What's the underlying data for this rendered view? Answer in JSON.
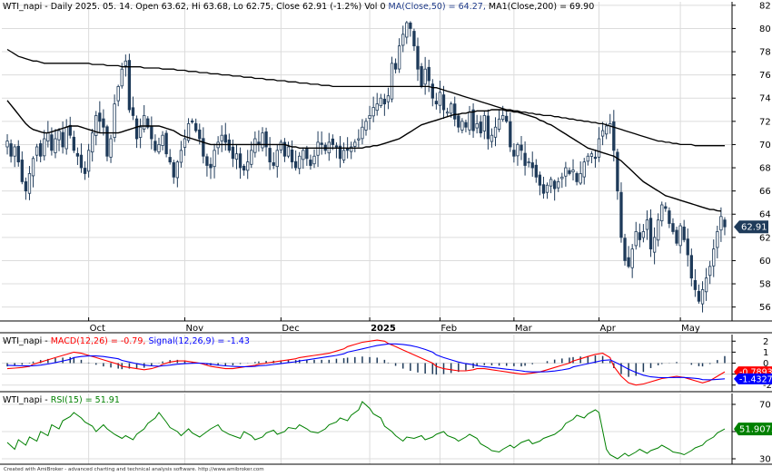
{
  "header": {
    "price": {
      "prefix": "WTI_napi - Daily 2025. 05. 14. Open 63.62, Hi 63.68, Lo 62.75, Close 62.91 (-1.2%) Vol 0 ",
      "ma50": "MA(Close,50) = 64.27, ",
      "ma200": "MA1(Close,200) = 69.90"
    },
    "macd": {
      "prefix": "WTI_napi - ",
      "macd": "MACD(12,26) = -0.79, ",
      "signal": "Signal(12,26,9) = -1.43"
    },
    "rsi": {
      "prefix": "WTI_napi - ",
      "rsi": "RSI(15) = 51.91"
    }
  },
  "footer": "Created with AmiBroker - advanced charting and technical analysis software. http://www.amibroker.com",
  "colors": {
    "bull_candle": "#ffffff",
    "bear_candle": "#1f3b5a",
    "candle_outline": "#1f3b5a",
    "ma_line": "#000000",
    "macd_line": "#ff0000",
    "signal_line": "#0000ff",
    "histogram": "#1f3b5a",
    "rsi_line": "#008000",
    "price_tag": "#1f3b5a",
    "macd_tag": "#ff0000",
    "signal_tag": "#0000ff",
    "rsi_tag": "#008000",
    "grid": "#dcdcdc"
  },
  "chart_data": [
    {
      "type": "candlestick",
      "panel": "price",
      "x_labels": [
        "Oct",
        "Nov",
        "Dec",
        "2025",
        "Feb",
        "Mar",
        "Apr",
        "May"
      ],
      "y_ticks": [
        56,
        58,
        60,
        62,
        64,
        66,
        68,
        70,
        72,
        74,
        76,
        78,
        80,
        82
      ],
      "ylim": [
        54.8,
        82.3
      ],
      "last_value_label": "62.91",
      "close": [
        70.3,
        69.0,
        69.8,
        68.5,
        66.8,
        66.0,
        67.5,
        68.8,
        69.8,
        69.0,
        70.5,
        71.0,
        69.5,
        70.5,
        71.2,
        69.8,
        71.5,
        70.8,
        69.5,
        69.0,
        68.0,
        67.5,
        69.5,
        71.0,
        72.5,
        72.0,
        71.5,
        69.0,
        70.5,
        73.5,
        75.0,
        76.5,
        77.2,
        73.0,
        72.5,
        70.5,
        71.5,
        72.5,
        71.5,
        70.5,
        69.5,
        70.0,
        70.8,
        69.2,
        68.5,
        67.2,
        68.5,
        69.5,
        70.5,
        71.8,
        72.0,
        71.2,
        70.5,
        69.0,
        68.2,
        68.0,
        69.5,
        70.2,
        70.8,
        70.2,
        69.5,
        68.8,
        69.2,
        68.0,
        67.8,
        68.5,
        69.5,
        70.5,
        70.0,
        71.0,
        69.8,
        68.5,
        68.2,
        69.5,
        70.2,
        69.0,
        69.8,
        68.5,
        68.0,
        69.0,
        69.5,
        68.8,
        68.2,
        69.0,
        70.2,
        70.0,
        69.5,
        70.2,
        70.0,
        69.8,
        68.8,
        69.5,
        69.5,
        69.8,
        70.2,
        70.5,
        71.5,
        72.0,
        72.5,
        73.2,
        73.5,
        74.0,
        73.5,
        74.2,
        77.0,
        76.5,
        78.5,
        79.5,
        80.5,
        80.0,
        78.5,
        76.5,
        75.0,
        76.5,
        75.5,
        74.0,
        73.5,
        74.5,
        73.0,
        72.8,
        73.5,
        72.2,
        71.5,
        72.0,
        71.5,
        72.8,
        71.2,
        71.8,
        71.0,
        72.5,
        70.5,
        70.8,
        71.5,
        72.2,
        72.5,
        72.0,
        69.8,
        69.0,
        70.0,
        69.5,
        68.2,
        68.5,
        68.0,
        67.2,
        66.5,
        65.8,
        66.5,
        67.0,
        66.2,
        66.8,
        67.2,
        68.0,
        67.5,
        67.8,
        66.8,
        67.5,
        68.5,
        69.0,
        69.2,
        68.8,
        70.5,
        71.2,
        71.6,
        71.8,
        69.5,
        66.0,
        62.0,
        60.0,
        59.5,
        61.0,
        62.5,
        61.8,
        62.5,
        63.5,
        61.0,
        62.0,
        63.5,
        64.8,
        64.5,
        63.2,
        62.5,
        61.5,
        63.0,
        61.8,
        60.5,
        58.5,
        57.5,
        56.5,
        57.5,
        58.5,
        59.5,
        61.0,
        62.5,
        63.8,
        62.91
      ]
    },
    {
      "type": "line",
      "panel": "price",
      "series": [
        {
          "name": "MA(Close,50)",
          "values": [
            73.8,
            73.4,
            73.0,
            72.6,
            72.2,
            71.8,
            71.5,
            71.3,
            71.2,
            71.1,
            71.0,
            71.0,
            71.1,
            71.2,
            71.3,
            71.4,
            71.5,
            71.6,
            71.6,
            71.6,
            71.5,
            71.4,
            71.3,
            71.2,
            71.1,
            71.0,
            71.0,
            71.0,
            71.0,
            71.0,
            71.0,
            71.1,
            71.2,
            71.3,
            71.4,
            71.5,
            71.6,
            71.6,
            71.6,
            71.6,
            71.6,
            71.6,
            71.5,
            71.4,
            71.3,
            71.2,
            71.0,
            70.8,
            70.7,
            70.6,
            70.5,
            70.4,
            70.3,
            70.2,
            70.1,
            70.0,
            70.0,
            70.0,
            70.0,
            70.0,
            70.0,
            70.0,
            70.0,
            70.0,
            70.0,
            70.0,
            70.0,
            70.0,
            70.0,
            70.0,
            70.0,
            70.0,
            70.0,
            70.0,
            70.0,
            70.0,
            69.9,
            69.8,
            69.8,
            69.7,
            69.7,
            69.7,
            69.7,
            69.7,
            69.7,
            69.7,
            69.7,
            69.7,
            69.7,
            69.7,
            69.7,
            69.7,
            69.7,
            69.7,
            69.7,
            69.7,
            69.7,
            69.8,
            69.8,
            69.9,
            69.9,
            70.0,
            70.1,
            70.2,
            70.3,
            70.4,
            70.5,
            70.7,
            70.9,
            71.1,
            71.3,
            71.5,
            71.7,
            71.8,
            71.9,
            72.0,
            72.1,
            72.2,
            72.3,
            72.4,
            72.5,
            72.6,
            72.6,
            72.7,
            72.7,
            72.8,
            72.8,
            72.9,
            72.9,
            72.9,
            72.9,
            73.0,
            73.0,
            73.0,
            73.0,
            72.9,
            72.9,
            72.8,
            72.8,
            72.7,
            72.6,
            72.5,
            72.4,
            72.3,
            72.1,
            72.0,
            71.8,
            71.7,
            71.5,
            71.3,
            71.1,
            70.9,
            70.7,
            70.5,
            70.3,
            70.1,
            69.9,
            69.7,
            69.6,
            69.5,
            69.4,
            69.3,
            69.2,
            69.1,
            69.0,
            68.8,
            68.6,
            68.3,
            68.0,
            67.7,
            67.4,
            67.1,
            66.8,
            66.6,
            66.4,
            66.2,
            66.0,
            65.8,
            65.6,
            65.5,
            65.4,
            65.3,
            65.2,
            65.1,
            65.0,
            64.9,
            64.8,
            64.7,
            64.6,
            64.5,
            64.4,
            64.4,
            64.3,
            64.27
          ]
        },
        {
          "name": "MA1(Close,200)",
          "values": [
            78.2,
            78.0,
            77.8,
            77.6,
            77.5,
            77.4,
            77.3,
            77.2,
            77.2,
            77.1,
            77.0,
            77.0,
            77.0,
            77.0,
            77.0,
            77.0,
            77.0,
            77.0,
            77.0,
            77.0,
            77.0,
            77.0,
            77.0,
            76.9,
            76.9,
            76.9,
            76.9,
            76.8,
            76.8,
            76.8,
            76.8,
            76.7,
            76.7,
            76.7,
            76.7,
            76.7,
            76.7,
            76.6,
            76.6,
            76.6,
            76.6,
            76.6,
            76.5,
            76.5,
            76.5,
            76.5,
            76.4,
            76.4,
            76.4,
            76.3,
            76.3,
            76.3,
            76.2,
            76.2,
            76.2,
            76.1,
            76.1,
            76.1,
            76.0,
            76.0,
            76.0,
            75.9,
            75.9,
            75.9,
            75.8,
            75.8,
            75.8,
            75.7,
            75.7,
            75.7,
            75.6,
            75.6,
            75.6,
            75.5,
            75.5,
            75.5,
            75.4,
            75.4,
            75.4,
            75.3,
            75.3,
            75.3,
            75.2,
            75.2,
            75.2,
            75.1,
            75.1,
            75.1,
            75.0,
            75.0,
            75.0,
            75.0,
            75.0,
            75.0,
            75.0,
            75.0,
            75.0,
            75.0,
            75.0,
            75.0,
            75.0,
            75.0,
            75.0,
            75.0,
            75.0,
            75.0,
            75.0,
            75.0,
            75.0,
            75.0,
            75.0,
            75.0,
            75.0,
            75.0,
            75.0,
            74.9,
            74.9,
            74.8,
            74.7,
            74.6,
            74.5,
            74.4,
            74.3,
            74.2,
            74.1,
            74.0,
            73.9,
            73.8,
            73.7,
            73.6,
            73.5,
            73.4,
            73.3,
            73.2,
            73.1,
            73.0,
            73.0,
            72.9,
            72.9,
            72.8,
            72.8,
            72.7,
            72.7,
            72.6,
            72.6,
            72.5,
            72.5,
            72.5,
            72.4,
            72.4,
            72.3,
            72.3,
            72.2,
            72.2,
            72.1,
            72.1,
            72.0,
            72.0,
            71.9,
            71.9,
            71.8,
            71.8,
            71.7,
            71.6,
            71.5,
            71.4,
            71.3,
            71.2,
            71.1,
            71.0,
            70.9,
            70.8,
            70.7,
            70.6,
            70.5,
            70.4,
            70.3,
            70.3,
            70.2,
            70.2,
            70.1,
            70.1,
            70.0,
            70.0,
            70.0,
            70.0,
            69.9,
            69.9,
            69.9,
            69.9,
            69.9,
            69.9,
            69.9,
            69.9,
            69.9
          ]
        }
      ]
    },
    {
      "type": "line",
      "panel": "macd",
      "y_ticks": [
        -2,
        -1,
        0,
        1,
        2
      ],
      "ylim": [
        -2.6,
        2.6
      ],
      "last_value_labels": [
        "-0.789317",
        "-1.4327"
      ],
      "series": [
        {
          "name": "MACD(12,26)",
          "values": [
            -0.5,
            -0.45,
            -0.4,
            -0.3,
            -0.1,
            0.1,
            0.3,
            0.5,
            0.7,
            0.9,
            1.0,
            0.9,
            0.7,
            0.5,
            0.3,
            0.1,
            -0.1,
            -0.3,
            -0.4,
            -0.5,
            -0.6,
            -0.5,
            -0.3,
            -0.1,
            0.1,
            0.2,
            0.2,
            0.1,
            0.0,
            -0.2,
            -0.3,
            -0.4,
            -0.5,
            -0.5,
            -0.4,
            -0.3,
            -0.2,
            -0.1,
            0.0,
            0.1,
            0.2,
            0.3,
            0.4,
            0.5,
            0.6,
            0.7,
            0.8,
            0.9,
            1.1,
            1.3,
            1.5,
            1.7,
            1.9,
            2.0,
            2.1,
            2.0,
            1.8,
            1.5,
            1.2,
            0.9,
            0.6,
            0.3,
            0.0,
            -0.3,
            -0.5,
            -0.6,
            -0.7,
            -0.7,
            -0.6,
            -0.5,
            -0.5,
            -0.6,
            -0.7,
            -0.8,
            -0.9,
            -1.0,
            -1.0,
            -0.9,
            -0.8,
            -0.6,
            -0.4,
            -0.2,
            0.0,
            0.2,
            0.4,
            0.6,
            0.8,
            0.9,
            0.5,
            -0.3,
            -1.2,
            -1.8,
            -2.0,
            -1.9,
            -1.7,
            -1.5,
            -1.4,
            -1.3,
            -1.2,
            -1.3,
            -1.5,
            -1.7,
            -1.8,
            -1.6,
            -1.2,
            -0.79
          ]
        },
        {
          "name": "Signal(12,26,9)",
          "values": [
            -0.2,
            -0.22,
            -0.25,
            -0.26,
            -0.24,
            -0.18,
            -0.08,
            0.05,
            0.2,
            0.35,
            0.5,
            0.6,
            0.65,
            0.65,
            0.6,
            0.5,
            0.4,
            0.25,
            0.1,
            -0.05,
            -0.18,
            -0.25,
            -0.28,
            -0.25,
            -0.18,
            -0.1,
            -0.05,
            -0.02,
            0.0,
            -0.05,
            -0.1,
            -0.18,
            -0.25,
            -0.3,
            -0.32,
            -0.32,
            -0.3,
            -0.25,
            -0.2,
            -0.12,
            -0.05,
            0.05,
            0.12,
            0.2,
            0.3,
            0.4,
            0.5,
            0.6,
            0.7,
            0.85,
            1.0,
            1.15,
            1.3,
            1.45,
            1.6,
            1.7,
            1.75,
            1.75,
            1.7,
            1.6,
            1.45,
            1.25,
            1.0,
            0.75,
            0.5,
            0.3,
            0.1,
            -0.05,
            -0.15,
            -0.25,
            -0.32,
            -0.4,
            -0.47,
            -0.55,
            -0.62,
            -0.7,
            -0.76,
            -0.8,
            -0.8,
            -0.78,
            -0.72,
            -0.62,
            -0.5,
            -0.35,
            -0.2,
            -0.05,
            0.1,
            0.25,
            0.3,
            0.15,
            -0.2,
            -0.55,
            -0.85,
            -1.1,
            -1.25,
            -1.3,
            -1.32,
            -1.32,
            -1.3,
            -1.3,
            -1.35,
            -1.42,
            -1.5,
            -1.52,
            -1.48,
            -1.43
          ]
        }
      ]
    },
    {
      "type": "line",
      "panel": "rsi",
      "y_ticks": [
        30,
        50,
        70
      ],
      "ylim": [
        26,
        78
      ],
      "last_value_label": "51.9073",
      "series": [
        {
          "name": "RSI(15)",
          "values": [
            42,
            37,
            44,
            40,
            46,
            43,
            50,
            47,
            55,
            52,
            58,
            61,
            64,
            60,
            57,
            54,
            50,
            55,
            52,
            48,
            45,
            47,
            44,
            48,
            52,
            56,
            60,
            64,
            57,
            53,
            50,
            47,
            52,
            49,
            46,
            48,
            52,
            55,
            51,
            48,
            47,
            45,
            50,
            47,
            44,
            46,
            49,
            51,
            48,
            50,
            53,
            52,
            55,
            52,
            50,
            49,
            52,
            55,
            57,
            60,
            58,
            62,
            66,
            72,
            67,
            63,
            60,
            54,
            50,
            47,
            43,
            46,
            45,
            47,
            44,
            46,
            48,
            50,
            47,
            45,
            43,
            46,
            48,
            45,
            41,
            38,
            36,
            35,
            37,
            40,
            38,
            42,
            44,
            41,
            43,
            45,
            47,
            48,
            52,
            56,
            59,
            62,
            60,
            63,
            66,
            64,
            37,
            33,
            30,
            34,
            32,
            35,
            37,
            34,
            36,
            38,
            40,
            37,
            35,
            34,
            33,
            36,
            38,
            40,
            43,
            46,
            49,
            51.91
          ]
        }
      ]
    }
  ]
}
